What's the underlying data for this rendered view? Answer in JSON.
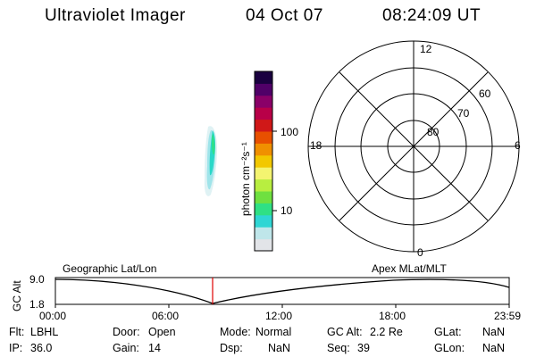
{
  "header": {
    "title": "Ultraviolet Imager",
    "date": "04 Oct 07",
    "time": "08:24:09 UT"
  },
  "colorbar": {
    "unit_label": "photon cm⁻²s⁻¹",
    "tick_labels": [
      "100",
      "10"
    ],
    "colors": [
      "#e2e4e8",
      "#bfe6ea",
      "#2fd6d4",
      "#2fe084",
      "#6fe040",
      "#b8ee40",
      "#f4f470",
      "#f2c800",
      "#f09000",
      "#e85000",
      "#d01818",
      "#b80048",
      "#8a0068",
      "#500068",
      "#1a0040"
    ]
  },
  "polar_plot": {
    "lat_labels": [
      "80",
      "70",
      "60"
    ],
    "mlt_labels": {
      "top": "12",
      "left": "18",
      "right": "6",
      "bottom": "0"
    }
  },
  "altitude_panel": {
    "left_label": "Geographic Lat/Lon",
    "right_label": "Apex MLat/MLT",
    "axis_title": "GC Alt",
    "y_ticks": [
      "9.0",
      "1.8"
    ],
    "x_ticks": [
      "00:00",
      "06:00",
      "12:00",
      "18:00",
      "23:59"
    ],
    "current_time_marker": "08:24:09"
  },
  "status": {
    "row1": [
      {
        "label": "Flt:",
        "value": "LBHL"
      },
      {
        "label": "Door:",
        "value": "Open"
      },
      {
        "label": "Mode:",
        "value": "Normal"
      },
      {
        "label": "GC Alt:",
        "value": "2.2 Re"
      },
      {
        "label": "GLat:",
        "value": "NaN"
      }
    ],
    "row2": [
      {
        "label": "IP:",
        "value": "36.0"
      },
      {
        "label": "Gain:",
        "value": "14"
      },
      {
        "label": "Dsp:",
        "value": "NaN"
      },
      {
        "label": "Seq:",
        "value": "39"
      },
      {
        "label": "GLon:",
        "value": "NaN"
      }
    ]
  },
  "colors": {
    "marker": "#e00000",
    "line": "#000000"
  }
}
